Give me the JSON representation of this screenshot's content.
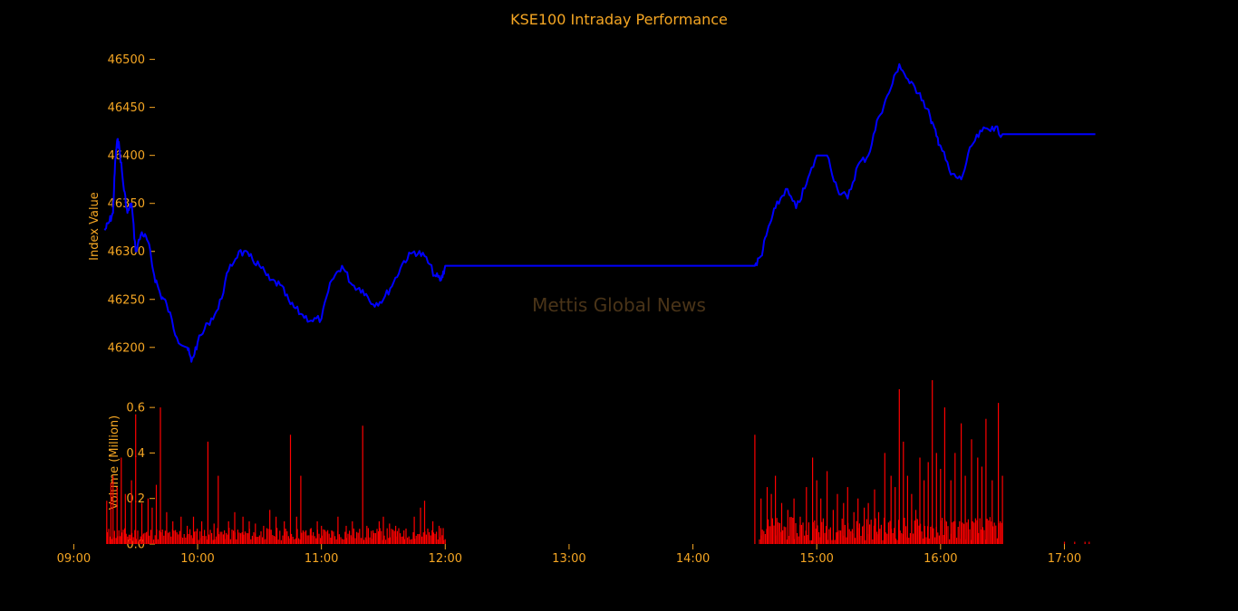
{
  "chart_data": [
    {
      "type": "line",
      "title": "KSE100 Intraday Performance",
      "watermark": "Mettis Global News",
      "xlabel": "",
      "ylabel": "Index Value",
      "ylim": [
        46180,
        46510
      ],
      "yticks": [
        46200,
        46250,
        46300,
        46350,
        46400,
        46450,
        46500
      ],
      "grid": false,
      "line_color": "#0000ff",
      "series": [
        {
          "x": [
            "09:15",
            "09:17",
            "09:19",
            "09:20",
            "09:21",
            "09:22",
            "09:24",
            "09:26",
            "09:28",
            "09:30",
            "09:33",
            "09:36",
            "09:39",
            "09:42",
            "09:45",
            "09:50",
            "09:55",
            "09:57",
            "10:00",
            "10:05",
            "10:10",
            "10:15",
            "10:20",
            "10:25",
            "10:30",
            "10:35",
            "10:40",
            "10:45",
            "10:50",
            "10:55",
            "11:00",
            "11:05",
            "11:10",
            "11:15",
            "11:20",
            "11:25",
            "11:30",
            "11:35",
            "11:40",
            "11:45",
            "11:50",
            "11:55",
            "11:58",
            "12:00",
            "14:30",
            "14:33",
            "14:36",
            "14:40",
            "14:45",
            "14:50",
            "14:55",
            "15:00",
            "15:05",
            "15:10",
            "15:15",
            "15:20",
            "15:25",
            "15:30",
            "15:35",
            "15:40",
            "15:45",
            "15:50",
            "15:55",
            "15:58",
            "16:00",
            "16:05",
            "16:10",
            "16:15",
            "16:20",
            "16:25",
            "16:30",
            "17:15"
          ],
          "values": [
            46322,
            46330,
            46340,
            46390,
            46415,
            46410,
            46370,
            46340,
            46350,
            46300,
            46320,
            46310,
            46275,
            46255,
            46245,
            46210,
            46200,
            46185,
            46205,
            46225,
            46240,
            46280,
            46300,
            46295,
            46285,
            46270,
            46265,
            46245,
            46235,
            46228,
            46230,
            46270,
            46285,
            46265,
            46260,
            46245,
            46250,
            46268,
            46290,
            46300,
            46295,
            46275,
            46270,
            46285,
            46285,
            46295,
            46320,
            46345,
            46365,
            46345,
            46370,
            46400,
            46400,
            46365,
            46355,
            46390,
            46400,
            46440,
            46465,
            46495,
            46475,
            46465,
            46440,
            46420,
            46410,
            46380,
            46375,
            46410,
            46425,
            46430,
            46422,
            46422
          ]
        }
      ]
    },
    {
      "type": "bar",
      "title": "",
      "xlabel": "",
      "ylabel": "Volume (Million)",
      "ylim": [
        0,
        0.7
      ],
      "yticks": [
        "0.0",
        "0.2",
        "0.4",
        "0.6"
      ],
      "ytick_values": [
        0,
        0.2,
        0.4,
        0.6
      ],
      "bar_color": "#ff0000",
      "xticks": [
        "09:00",
        "10:00",
        "11:00",
        "12:00",
        "13:00",
        "14:00",
        "15:00",
        "16:00",
        "17:00"
      ],
      "xlim": [
        "08:55",
        "17:20"
      ],
      "series": [
        {
          "name": "",
          "x": [
            "09:16",
            "09:18",
            "09:19",
            "09:21",
            "09:23",
            "09:25",
            "09:28",
            "09:30",
            "09:33",
            "09:36",
            "09:38",
            "09:40",
            "09:42",
            "09:45",
            "09:48",
            "09:52",
            "09:55",
            "09:58",
            "10:02",
            "10:05",
            "10:08",
            "10:10",
            "10:13",
            "10:15",
            "10:18",
            "10:22",
            "10:25",
            "10:28",
            "10:32",
            "10:35",
            "10:38",
            "10:42",
            "10:45",
            "10:48",
            "10:50",
            "10:55",
            "10:58",
            "11:00",
            "11:05",
            "11:08",
            "11:12",
            "11:15",
            "11:20",
            "11:22",
            "11:25",
            "11:28",
            "11:30",
            "11:33",
            "11:36",
            "11:40",
            "11:45",
            "11:48",
            "11:50",
            "11:54",
            "11:57",
            "11:59",
            "14:30",
            "14:33",
            "14:36",
            "14:38",
            "14:40",
            "14:43",
            "14:46",
            "14:49",
            "14:52",
            "14:55",
            "14:58",
            "15:00",
            "15:02",
            "15:05",
            "15:08",
            "15:10",
            "15:13",
            "15:15",
            "15:18",
            "15:20",
            "15:23",
            "15:25",
            "15:28",
            "15:30",
            "15:33",
            "15:36",
            "15:38",
            "15:40",
            "15:42",
            "15:44",
            "15:46",
            "15:48",
            "15:50",
            "15:52",
            "15:54",
            "15:56",
            "15:58",
            "16:00",
            "16:02",
            "16:05",
            "16:07",
            "16:10",
            "16:12",
            "16:15",
            "16:18",
            "16:20",
            "16:22",
            "16:25",
            "16:28",
            "16:30",
            "17:00",
            "17:05",
            "17:10",
            "17:12"
          ],
          "values": [
            0.19,
            0.27,
            0.3,
            0.25,
            0.38,
            0.22,
            0.28,
            0.57,
            0.18,
            0.2,
            0.16,
            0.26,
            0.6,
            0.14,
            0.1,
            0.12,
            0.08,
            0.12,
            0.1,
            0.45,
            0.09,
            0.3,
            0.06,
            0.1,
            0.14,
            0.12,
            0.1,
            0.09,
            0.08,
            0.15,
            0.12,
            0.1,
            0.48,
            0.12,
            0.3,
            0.07,
            0.1,
            0.08,
            0.06,
            0.12,
            0.08,
            0.1,
            0.52,
            0.08,
            0.06,
            0.1,
            0.12,
            0.09,
            0.08,
            0.06,
            0.12,
            0.16,
            0.19,
            0.1,
            0.08,
            0.07,
            0.48,
            0.2,
            0.25,
            0.22,
            0.3,
            0.18,
            0.15,
            0.2,
            0.12,
            0.25,
            0.38,
            0.28,
            0.2,
            0.32,
            0.15,
            0.22,
            0.18,
            0.25,
            0.14,
            0.2,
            0.16,
            0.18,
            0.24,
            0.14,
            0.4,
            0.3,
            0.25,
            0.68,
            0.45,
            0.3,
            0.22,
            0.15,
            0.38,
            0.28,
            0.36,
            0.72,
            0.4,
            0.33,
            0.6,
            0.28,
            0.4,
            0.53,
            0.3,
            0.46,
            0.38,
            0.34,
            0.55,
            0.28,
            0.62,
            0.3,
            0.01,
            0.01,
            0.01,
            0.01
          ]
        }
      ]
    }
  ]
}
